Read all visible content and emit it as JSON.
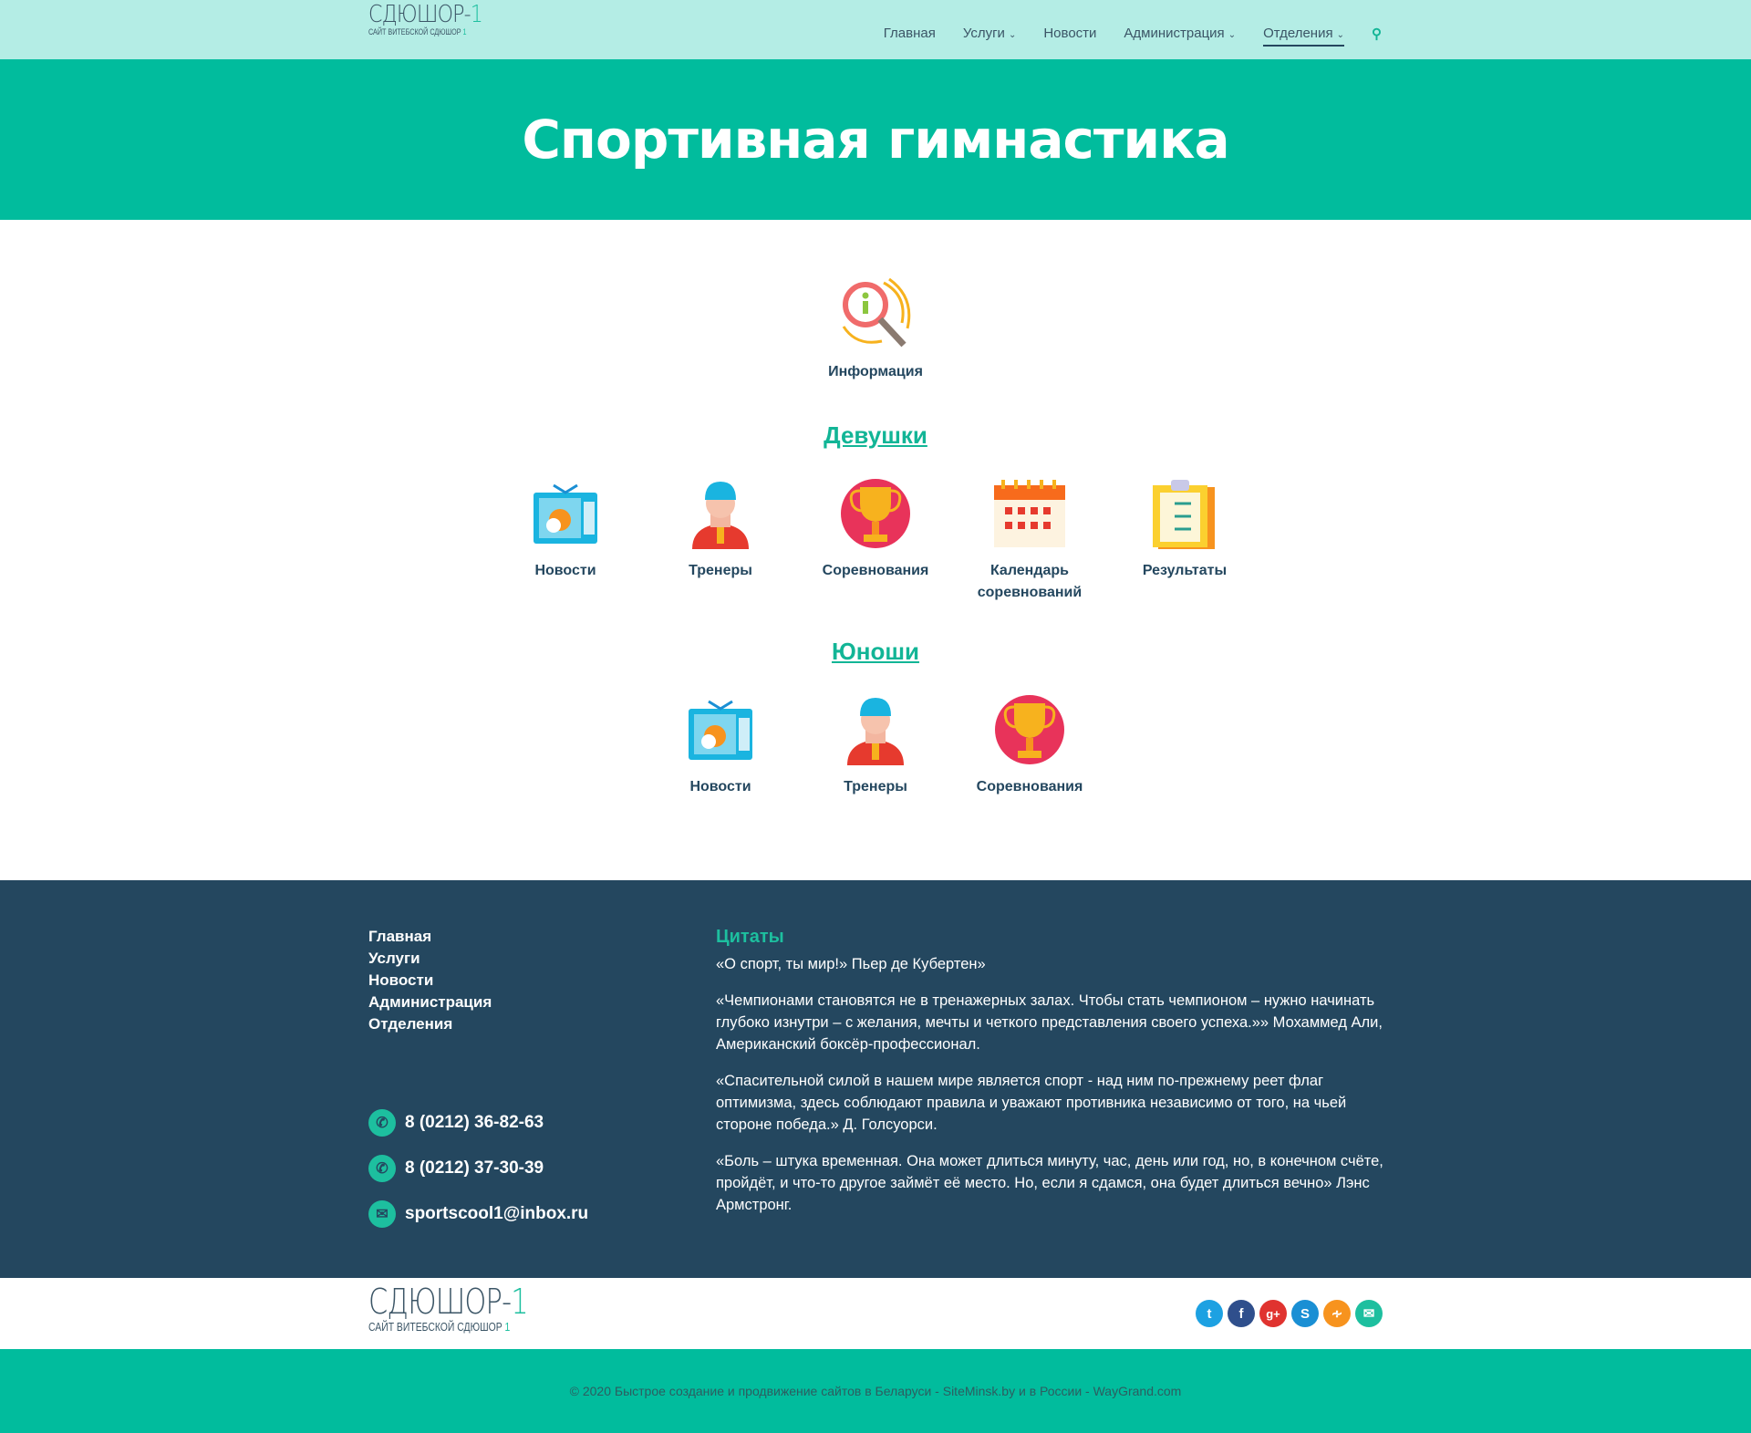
{
  "header": {
    "logo_title": "СДЮШОР-",
    "logo_digit": "1",
    "logo_subtitle": "САЙТ ВИТЕБСКОЙ СДЮШОР",
    "logo_sub_digit": "1",
    "nav": [
      {
        "label": "Главная"
      },
      {
        "label": "Услуги",
        "dropdown": true
      },
      {
        "label": "Новости"
      },
      {
        "label": "Администрация",
        "dropdown": true
      },
      {
        "label": "Отделения",
        "dropdown": true,
        "active": true
      }
    ],
    "chevron": "⌄",
    "search_icon": "search-icon"
  },
  "hero": {
    "title": "Спортивная гимнастика"
  },
  "main": {
    "info": {
      "label": "Информация",
      "icon": "info-magnifier-icon"
    },
    "girls": {
      "title": "Девушки",
      "items": [
        {
          "label": "Новости",
          "icon": "tv-icon"
        },
        {
          "label": "Тренеры",
          "icon": "coach-icon"
        },
        {
          "label": "Соревнования",
          "icon": "trophy-icon"
        },
        {
          "label": "Календарь соревнований",
          "icon": "calendar-icon"
        },
        {
          "label": "Результаты",
          "icon": "clipboard-icon"
        }
      ]
    },
    "boys": {
      "title": "Юноши",
      "items": [
        {
          "label": "Новости",
          "icon": "tv-icon"
        },
        {
          "label": "Тренеры",
          "icon": "coach-icon"
        },
        {
          "label": "Соревнования",
          "icon": "trophy-icon"
        }
      ]
    }
  },
  "footer": {
    "menu": [
      "Главная",
      "Услуги",
      "Новости",
      "Администрация",
      "Отделения"
    ],
    "phones": [
      "8 (0212) 36-82-63",
      "8 (0212) 37-30-39"
    ],
    "email": "sportscool1@inbox.ru",
    "quotes_title": "Цитаты",
    "quotes": [
      "«О спорт, ты мир!» Пьер де Кубертен»",
      "«Чемпионами становятся не в тренажерных залах. Чтобы стать чемпионом – нужно начинать глубоко изнутри – с желания, мечты и четкого представления своего успеха.»» Мохаммед Али, Американский боксёр-профессионал.",
      "«Спасительной силой в нашем мире является спорт - над ним по-прежнему реет флаг оптимизма, здесь соблюдают правила и уважают противника независимо от того, на чьей стороне победа.» Д. Голсуорси.",
      "«Боль – штука временная. Она может длиться минуту, час, день или год, но, в конечном счёте, пройдёт, и что-то другое займёт её место. Но, если я сдамся, она будет длиться вечно» Лэнс Армстронг."
    ]
  },
  "bottom": {
    "social": [
      {
        "name": "twitter",
        "glyph": "t",
        "color": "#1da1e2"
      },
      {
        "name": "facebook",
        "glyph": "f",
        "color": "#2f4f8c"
      },
      {
        "name": "google-plus",
        "glyph": "g+",
        "color": "#e0332f"
      },
      {
        "name": "skype",
        "glyph": "S",
        "color": "#1a8fd4"
      },
      {
        "name": "rss",
        "glyph": "◠",
        "color": "#f7931e"
      },
      {
        "name": "email",
        "glyph": "✉",
        "color": "#1dbf9f"
      }
    ]
  },
  "copyright": "© 2020 Быстрое создание и продвижение сайтов в Беларуси - SiteMinsk.by и в России - WayGrand.com"
}
